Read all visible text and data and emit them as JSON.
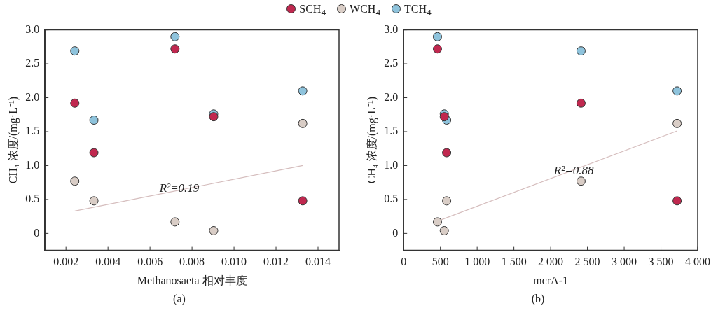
{
  "chart_data": [
    {
      "type": "scatter",
      "xlabel": "Methanosaeta 相对丰度",
      "ylabel": "CH₄ 浓度/(mg·L⁻¹)",
      "legend": "top",
      "marker": "circle",
      "xlim": [
        0.001,
        0.015
      ],
      "xticks": [
        0.002,
        0.004,
        0.006,
        0.008,
        {
          "value": 0.01,
          "label": "0.010"
        },
        0.012,
        0.014
      ],
      "ylim": [
        -0.25,
        3.0
      ],
      "yticks": [
        0,
        0.5,
        {
          "value": 1,
          "label": "1.0"
        },
        1.5,
        {
          "value": 2,
          "label": "2.0"
        },
        2.5,
        {
          "value": 3,
          "label": "3.0"
        }
      ],
      "x": [
        0.00242,
        0.00333,
        0.00719,
        0.00903,
        0.01327
      ],
      "series": [
        {
          "name": "SCH$_{4}$",
          "color": "#c0284f",
          "values": [
            1.92,
            1.19,
            2.72,
            1.72,
            0.48
          ]
        },
        {
          "name": "WCH$_{4}$",
          "color": "#d9cdc6",
          "values": [
            0.77,
            0.48,
            0.17,
            0.04,
            1.62
          ]
        },
        {
          "name": "TCH$_{4}$",
          "color": "#8ec3dc",
          "values": [
            2.69,
            1.67,
            2.9,
            1.76,
            2.1
          ]
        },
        {
          "type": "line",
          "color": "#d5bdbd",
          "marker": "none",
          "x": [
            0.00242,
            0.01327
          ],
          "values": [
            0.33,
            1.0
          ]
        }
      ],
      "annotations": [
        "R²=0.19",
        "(a)"
      ]
    },
    {
      "type": "scatter",
      "xlabel": "mcrA-1",
      "ylabel": "CH₄ 浓度/(mg·L⁻¹)",
      "marker": "circle",
      "xlim": [
        0,
        4000
      ],
      "xticks": [
        0,
        500,
        {
          "value": 1000,
          "label": "1 000"
        },
        {
          "value": 1500,
          "label": "1 500"
        },
        {
          "value": 2000,
          "label": "2 000"
        },
        {
          "value": 2500,
          "label": "2 500"
        },
        {
          "value": 3000,
          "label": "3 000"
        },
        {
          "value": 3500,
          "label": "3 500"
        },
        {
          "value": 4000,
          "label": "4 000"
        }
      ],
      "ylim": [
        -0.25,
        3.0
      ],
      "yticks": [
        0,
        0.5,
        {
          "value": 1,
          "label": "1.0"
        },
        1.5,
        {
          "value": 2,
          "label": "2.0"
        },
        2.5,
        {
          "value": 3,
          "label": "3.0"
        }
      ],
      "x": [
        2413,
        585,
        460,
        553,
        3720
      ],
      "series": [
        {
          "color": "#c0284f",
          "values": [
            1.92,
            1.19,
            2.72,
            1.72,
            0.48
          ]
        },
        {
          "color": "#d9cdc6",
          "values": [
            0.77,
            0.48,
            0.17,
            0.04,
            1.62
          ]
        },
        {
          "color": "#8ec3dc",
          "values": [
            2.69,
            1.67,
            2.9,
            1.76,
            2.1
          ]
        },
        {
          "type": "line",
          "color": "#d5bdbd",
          "marker": "none",
          "x": [
            460,
            3720
          ],
          "values": [
            0.18,
            1.51
          ]
        }
      ],
      "annotations": [
        "R²=0.88",
        "(b)"
      ]
    }
  ]
}
